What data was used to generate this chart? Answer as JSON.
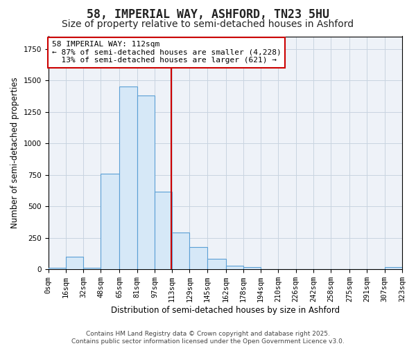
{
  "title": "58, IMPERIAL WAY, ASHFORD, TN23 5HU",
  "subtitle": "Size of property relative to semi-detached houses in Ashford",
  "xlabel": "Distribution of semi-detached houses by size in Ashford",
  "ylabel": "Number of semi-detached properties",
  "property_size": 112,
  "property_label": "58 IMPERIAL WAY: 112sqm",
  "pct_smaller": 87,
  "count_smaller": 4228,
  "pct_larger": 13,
  "count_larger": 621,
  "bin_edges": [
    0,
    16,
    32,
    48,
    65,
    81,
    97,
    113,
    129,
    145,
    162,
    178,
    194,
    210,
    226,
    242,
    258,
    275,
    291,
    307,
    323
  ],
  "bar_heights": [
    10,
    100,
    10,
    760,
    1450,
    1380,
    615,
    295,
    175,
    85,
    30,
    20,
    0,
    0,
    0,
    0,
    0,
    0,
    0,
    15
  ],
  "bar_color": "#d6e8f7",
  "bar_edge_color": "#5a9fd4",
  "vline_color": "#cc0000",
  "grid_color": "#c8d4e0",
  "plot_bg_color": "#eef2f8",
  "fig_bg_color": "#ffffff",
  "annotation_box_color": "#ffffff",
  "annotation_box_edge": "#cc0000",
  "footer_text": "Contains HM Land Registry data © Crown copyright and database right 2025.\nContains public sector information licensed under the Open Government Licence v3.0.",
  "ylim": [
    0,
    1850
  ],
  "title_fontsize": 12,
  "subtitle_fontsize": 10,
  "axis_label_fontsize": 8.5,
  "tick_fontsize": 7.5,
  "annotation_fontsize": 8,
  "footer_fontsize": 6.5
}
